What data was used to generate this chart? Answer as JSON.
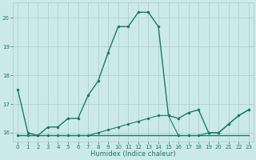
{
  "xlabel": "Humidex (Indice chaleur)",
  "background_color": "#cce9e9",
  "grid_color": "#aacccc",
  "line_color": "#1a7a6e",
  "xlim": [
    -0.5,
    23.5
  ],
  "ylim": [
    15.7,
    20.55
  ],
  "yticks": [
    16,
    17,
    18,
    19,
    20
  ],
  "xticks": [
    0,
    1,
    2,
    3,
    4,
    5,
    6,
    7,
    8,
    9,
    10,
    11,
    12,
    13,
    14,
    15,
    16,
    17,
    18,
    19,
    20,
    21,
    22,
    23
  ],
  "series1_x": [
    0,
    1,
    2,
    3,
    4,
    5,
    6,
    7,
    8,
    9,
    10,
    11,
    12,
    13,
    14,
    15,
    16,
    17,
    18,
    19,
    20,
    21,
    22,
    23
  ],
  "series1_y": [
    17.5,
    16.0,
    15.9,
    16.2,
    16.2,
    16.5,
    16.5,
    17.3,
    17.8,
    18.8,
    19.7,
    19.7,
    20.2,
    20.2,
    19.7,
    16.6,
    16.5,
    16.7,
    16.8,
    16.0,
    16.0,
    16.3,
    16.6,
    16.8
  ],
  "series2_x": [
    0,
    1,
    2,
    3,
    4,
    5,
    6,
    7,
    8,
    9,
    10,
    11,
    12,
    13,
    14,
    15,
    16,
    17,
    18,
    19,
    20,
    21,
    22,
    23
  ],
  "series2_y": [
    15.9,
    15.9,
    15.9,
    15.9,
    15.9,
    15.9,
    15.9,
    15.9,
    15.9,
    15.9,
    15.9,
    15.9,
    15.9,
    15.9,
    15.9,
    15.9,
    15.9,
    15.9,
    15.9,
    15.9,
    15.9,
    15.9,
    15.9,
    15.9
  ],
  "series3_x": [
    0,
    1,
    2,
    3,
    4,
    5,
    6,
    7,
    8,
    9,
    10,
    11,
    12,
    13,
    14,
    15,
    16,
    17,
    18,
    19,
    20,
    21,
    22,
    23
  ],
  "series3_y": [
    15.9,
    15.9,
    15.9,
    15.9,
    15.9,
    15.9,
    15.9,
    15.9,
    16.0,
    16.1,
    16.2,
    16.3,
    16.4,
    16.5,
    16.6,
    16.6,
    15.9,
    15.9,
    15.9,
    16.0,
    16.0,
    16.3,
    16.6,
    16.8
  ],
  "marker_size": 3.0,
  "linewidth": 1.0,
  "tick_labelsize": 5.0,
  "xlabel_fontsize": 6.0
}
